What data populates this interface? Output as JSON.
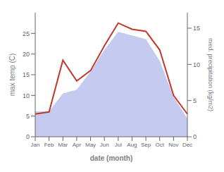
{
  "chart_data": {
    "type": "line",
    "categories": [
      "Jan",
      "Feb",
      "Mar",
      "Apr",
      "May",
      "Jun",
      "Jul",
      "Aug",
      "Sep",
      "Oct",
      "Nov",
      "Dec"
    ],
    "series": [
      {
        "type": "area",
        "axis": "y2",
        "color": "#c5cbf0",
        "values": [
          3.5,
          3.5,
          6.0,
          6.5,
          9.0,
          12.0,
          14.5,
          14.0,
          13.5,
          10.5,
          5.5,
          2.5
        ]
      },
      {
        "type": "line",
        "color": "#c0392b",
        "values": [
          5.5,
          6.0,
          18.5,
          13.5,
          16.0,
          22.0,
          27.5,
          26.0,
          25.5,
          21.0,
          10.0,
          5.5
        ]
      }
    ],
    "xlabel": "date (month)",
    "ylabel": "max temp (C)",
    "y2label": "med. precipitation (kg/m2)",
    "ylim": [
      0,
      30
    ],
    "yticks": [
      0,
      5,
      10,
      15,
      20,
      25
    ],
    "y2lim": [
      0,
      17.14
    ],
    "y2ticks": [
      0,
      5,
      10,
      15
    ],
    "grid": false
  }
}
